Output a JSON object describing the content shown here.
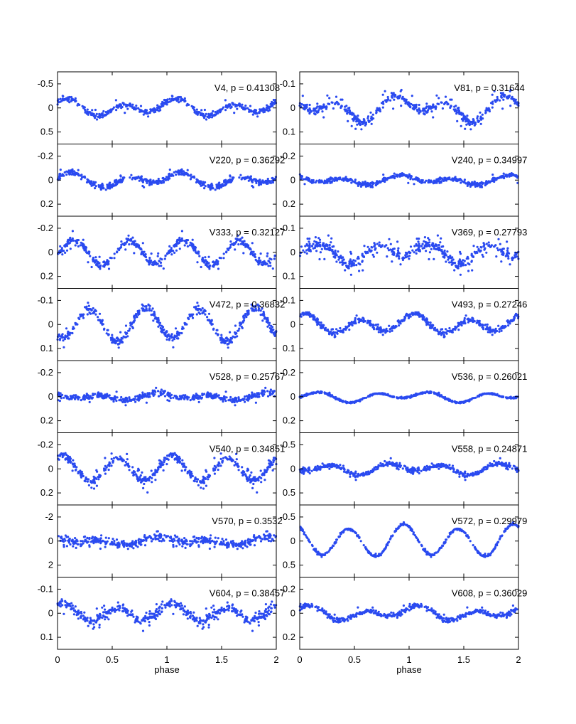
{
  "figure": {
    "xlabel": "phase",
    "x_ticks": [
      "0",
      "0.5",
      "1",
      "1.5",
      "2"
    ],
    "point_color": "#2a4af0",
    "frame_color": "#000000",
    "xlim": [
      0,
      2
    ]
  },
  "chart_data": [
    {
      "type": "scatter",
      "label": "V4, p = 0.41308",
      "ylim": [
        0.75,
        -0.75
      ],
      "y_ticks": [
        "-0.5",
        "0",
        "0.5"
      ],
      "y_tick_values": [
        -0.5,
        0,
        0.5
      ],
      "model": {
        "h": [
          [
            -0.08,
            0.0
          ],
          [
            -0.12,
            0.6
          ]
        ],
        "noise": 0.03,
        "outlier": 0.06,
        "outlier_amp": 0.15,
        "n": 220,
        "seed": 11
      }
    },
    {
      "type": "scatter",
      "label": "V81, p = 0.31644",
      "ylim": [
        0.15,
        -0.15
      ],
      "y_ticks": [
        "-0.1",
        "0",
        "0.1"
      ],
      "y_tick_values": [
        -0.1,
        0,
        0.1
      ],
      "model": {
        "h": [
          [
            -0.03,
            0.0
          ],
          [
            -0.035,
            0.35
          ]
        ],
        "noise": 0.007,
        "outlier": 0.15,
        "outlier_amp": 0.045,
        "n": 240,
        "seed": 22
      }
    },
    {
      "type": "scatter",
      "label": "V220, p = 0.36292",
      "ylim": [
        0.3,
        -0.3
      ],
      "y_ticks": [
        "-0.2",
        "0",
        "0.2"
      ],
      "y_tick_values": [
        -0.2,
        0,
        0.2
      ],
      "model": {
        "h": [
          [
            -0.03,
            0.0
          ],
          [
            -0.04,
            0.65
          ]
        ],
        "noise": 0.012,
        "outlier": 0.06,
        "outlier_amp": 0.06,
        "n": 240,
        "seed": 33
      }
    },
    {
      "type": "scatter",
      "label": "V240, p = 0.34997",
      "ylim": [
        0.3,
        -0.3
      ],
      "y_ticks": [
        "-0.2",
        "0",
        "0.2"
      ],
      "y_tick_values": [
        -0.2,
        0,
        0.2
      ],
      "model": {
        "h": [
          [
            -0.02,
            0.0
          ],
          [
            -0.025,
            0.4
          ]
        ],
        "noise": 0.01,
        "outlier": 0.06,
        "outlier_amp": 0.05,
        "n": 240,
        "seed": 44
      }
    },
    {
      "type": "scatter",
      "label": "V333, p = 0.32127",
      "ylim": [
        0.3,
        -0.3
      ],
      "y_ticks": [
        "-0.2",
        "0",
        "0.2"
      ],
      "y_tick_values": [
        -0.2,
        0,
        0.2
      ],
      "model": {
        "h": [
          [
            -0.01,
            0.0
          ],
          [
            -0.1,
            0.65
          ]
        ],
        "noise": 0.014,
        "outlier": 0.2,
        "outlier_amp": 0.09,
        "n": 240,
        "seed": 55
      }
    },
    {
      "type": "scatter",
      "label": "V369, p = 0.27793",
      "ylim": [
        0.15,
        -0.15
      ],
      "y_ticks": [
        "-0.1",
        "0",
        "0.1"
      ],
      "y_tick_values": [
        -0.1,
        0,
        0.1
      ],
      "model": {
        "h": [
          [
            -0.02,
            0.0
          ],
          [
            -0.03,
            0.2
          ]
        ],
        "noise": 0.01,
        "outlier": 0.2,
        "outlier_amp": 0.05,
        "n": 240,
        "seed": 66
      }
    },
    {
      "type": "scatter",
      "label": "V472, p = 0.36832",
      "ylim": [
        0.15,
        -0.15
      ],
      "y_ticks": [
        "-0.1",
        "0",
        "0.1"
      ],
      "y_tick_values": [
        -0.1,
        0,
        0.1
      ],
      "model": {
        "h": [
          [
            -0.01,
            0.0
          ],
          [
            -0.065,
            0.8
          ]
        ],
        "noise": 0.01,
        "outlier": 0.06,
        "outlier_amp": 0.04,
        "n": 240,
        "seed": 77
      }
    },
    {
      "type": "scatter",
      "label": "V493, p = 0.27246",
      "ylim": [
        0.15,
        -0.15
      ],
      "y_ticks": [
        "-0.1",
        "0",
        "0.1"
      ],
      "y_tick_values": [
        -0.1,
        0,
        0.1
      ],
      "model": {
        "h": [
          [
            -0.015,
            0.0
          ],
          [
            -0.03,
            0.55
          ]
        ],
        "noise": 0.006,
        "outlier": 0.03,
        "outlier_amp": 0.03,
        "n": 240,
        "seed": 88
      }
    },
    {
      "type": "scatter",
      "label": "V528, p = 0.25767",
      "ylim": [
        0.3,
        -0.3
      ],
      "y_ticks": [
        "-0.2",
        "0",
        "0.2"
      ],
      "y_tick_values": [
        -0.2,
        0,
        0.2
      ],
      "model": {
        "h": [
          [
            -0.015,
            0.0
          ],
          [
            -0.02,
            0.4
          ]
        ],
        "noise": 0.012,
        "outlier": 0.05,
        "outlier_amp": 0.05,
        "n": 240,
        "seed": 99
      }
    },
    {
      "type": "scatter",
      "label": "V536, p = 0.26021",
      "ylim": [
        0.3,
        -0.3
      ],
      "y_ticks": [
        "-0.2",
        "0",
        "0.2"
      ],
      "y_tick_values": [
        -0.2,
        0,
        0.2
      ],
      "model": {
        "h": [
          [
            -0.02,
            0.0
          ],
          [
            -0.03,
            0.2
          ]
        ],
        "noise": 0.004,
        "outlier": 0.02,
        "outlier_amp": 0.02,
        "n": 240,
        "seed": 111
      }
    },
    {
      "type": "scatter",
      "label": "V540, p = 0.34851",
      "ylim": [
        0.3,
        -0.3
      ],
      "y_ticks": [
        "-0.2",
        "0",
        "0.2"
      ],
      "y_tick_values": [
        -0.2,
        0,
        0.2
      ],
      "model": {
        "h": [
          [
            -0.01,
            0.0
          ],
          [
            -0.1,
            0.55
          ]
        ],
        "noise": 0.014,
        "outlier": 0.15,
        "outlier_amp": 0.08,
        "n": 240,
        "seed": 122
      }
    },
    {
      "type": "scatter",
      "label": "V558, p = 0.24871",
      "ylim": [
        0.75,
        -0.75
      ],
      "y_ticks": [
        "-0.5",
        "0",
        "0.5"
      ],
      "y_tick_values": [
        -0.5,
        0,
        0.5
      ],
      "model": {
        "h": [
          [
            -0.05,
            0.0
          ],
          [
            -0.08,
            0.3
          ]
        ],
        "noise": 0.025,
        "outlier": 0.08,
        "outlier_amp": 0.1,
        "n": 240,
        "seed": 133
      }
    },
    {
      "type": "scatter",
      "label": "V570, p = 0.3532",
      "ylim": [
        3.0,
        -3.0
      ],
      "y_ticks": [
        "-2",
        "0",
        "2"
      ],
      "y_tick_values": [
        -2,
        0,
        2
      ],
      "model": {
        "h": [
          [
            -0.2,
            0.0
          ],
          [
            -0.2,
            0.4
          ]
        ],
        "noise": 0.15,
        "outlier": 0.15,
        "outlier_amp": 0.5,
        "n": 240,
        "seed": 144
      }
    },
    {
      "type": "scatter",
      "label": "V572, p = 0.29979",
      "ylim": [
        0.75,
        -0.75
      ],
      "y_ticks": [
        "-0.5",
        "0",
        "0.5"
      ],
      "y_tick_values": [
        -0.5,
        0,
        0.5
      ],
      "model": {
        "h": [
          [
            -0.05,
            0.0
          ],
          [
            -0.3,
            0.45
          ]
        ],
        "noise": 0.012,
        "outlier": 0.02,
        "outlier_amp": 0.06,
        "n": 240,
        "seed": 155
      }
    },
    {
      "type": "scatter",
      "label": "V604, p = 0.38457",
      "ylim": [
        0.15,
        -0.15
      ],
      "y_ticks": [
        "-0.1",
        "0",
        "0.1"
      ],
      "y_tick_values": [
        -0.1,
        0,
        0.1
      ],
      "model": {
        "h": [
          [
            -0.01,
            0.0
          ],
          [
            -0.03,
            0.55
          ]
        ],
        "noise": 0.009,
        "outlier": 0.15,
        "outlier_amp": 0.04,
        "n": 240,
        "seed": 166
      }
    },
    {
      "type": "scatter",
      "label": "V608, p = 0.36029",
      "ylim": [
        0.3,
        -0.3
      ],
      "y_ticks": [
        "-0.2",
        "0",
        "0.2"
      ],
      "y_tick_values": [
        -0.2,
        0,
        0.2
      ],
      "model": {
        "h": [
          [
            -0.03,
            0.0
          ],
          [
            -0.04,
            0.6
          ]
        ],
        "noise": 0.01,
        "outlier": 0.05,
        "outlier_amp": 0.05,
        "n": 240,
        "seed": 177
      }
    }
  ]
}
